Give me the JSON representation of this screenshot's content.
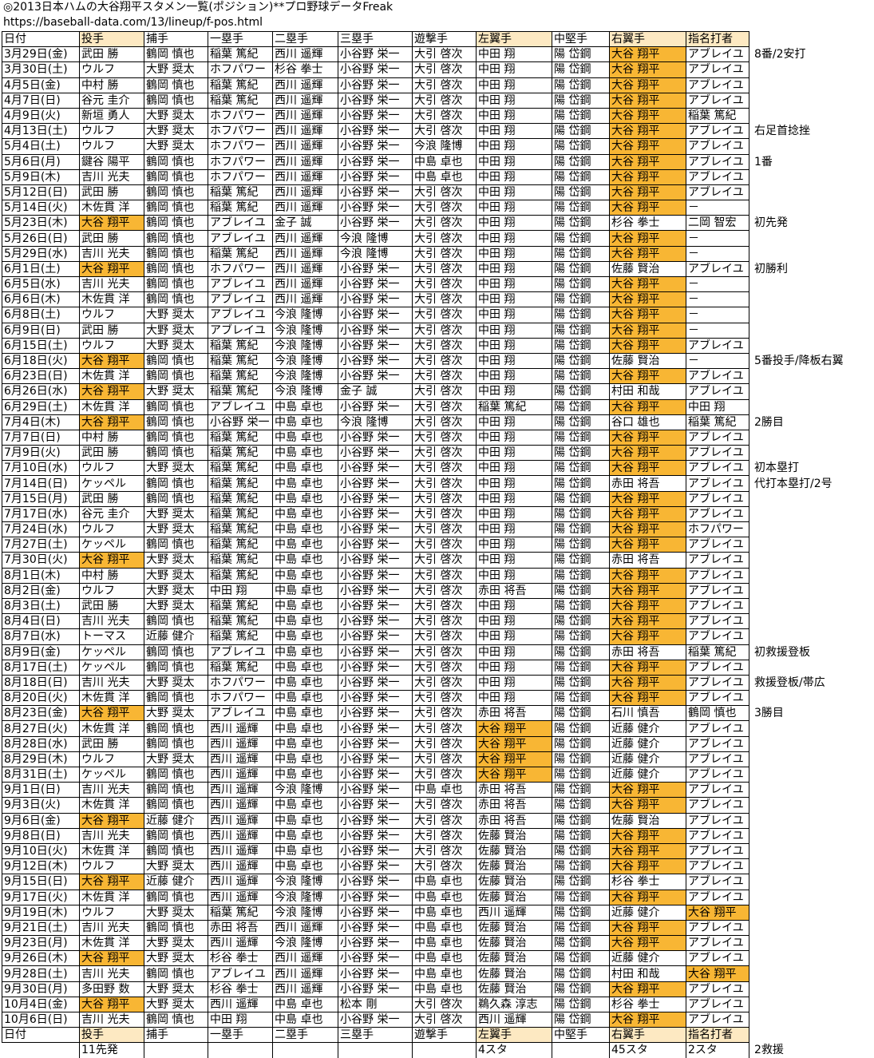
{
  "title": "◎2013日本ハムの大谷翔平スタメン一覧(ポジション)**プロ野球データFreak",
  "url": "https://baseball-data.com/13/lineup/f-pos.html",
  "colors": {
    "highlight": "#f8b634",
    "header_highlight": "#fde9c2"
  },
  "headers": [
    "日付",
    "投手",
    "捕手",
    "一塁手",
    "二塁手",
    "三塁手",
    "遊撃手",
    "左翼手",
    "中堅手",
    "右翼手",
    "指名打者"
  ],
  "rows": [
    {
      "c": [
        "3月29日(金)",
        "武田 勝",
        "鶴岡 慎也",
        "稲葉 篤紀",
        "西川 遥輝",
        "小谷野 栄一",
        "大引 啓次",
        "中田 翔",
        "陽 岱鋼",
        "大谷 翔平",
        "アブレイユ"
      ],
      "n": "8番/2安打"
    },
    {
      "c": [
        "3月30日(土)",
        "ウルフ",
        "大野 奨太",
        "ホフパワー",
        "杉谷 拳士",
        "小谷野 栄一",
        "大引 啓次",
        "中田 翔",
        "陽 岱鋼",
        "大谷 翔平",
        "アブレイユ"
      ],
      "n": ""
    },
    {
      "c": [
        "4月5日(金)",
        "中村 勝",
        "鶴岡 慎也",
        "稲葉 篤紀",
        "西川 遥輝",
        "小谷野 栄一",
        "大引 啓次",
        "中田 翔",
        "陽 岱鋼",
        "大谷 翔平",
        "アブレイユ"
      ],
      "n": ""
    },
    {
      "c": [
        "4月7日(日)",
        "谷元 圭介",
        "鶴岡 慎也",
        "稲葉 篤紀",
        "西川 遥輝",
        "小谷野 栄一",
        "大引 啓次",
        "中田 翔",
        "陽 岱鋼",
        "大谷 翔平",
        "アブレイユ"
      ],
      "n": ""
    },
    {
      "c": [
        "4月9日(火)",
        "新垣 勇人",
        "大野 奨太",
        "ホフパワー",
        "西川 遥輝",
        "小谷野 栄一",
        "大引 啓次",
        "中田 翔",
        "陽 岱鋼",
        "大谷 翔平",
        "稲葉 篤紀"
      ],
      "n": ""
    },
    {
      "c": [
        "4月13日(土)",
        "ウルフ",
        "大野 奨太",
        "ホフパワー",
        "西川 遥輝",
        "小谷野 栄一",
        "大引 啓次",
        "中田 翔",
        "陽 岱鋼",
        "大谷 翔平",
        "アブレイユ"
      ],
      "n": "右足首捻挫"
    },
    {
      "c": [
        "5月4日(土)",
        "ウルフ",
        "大野 奨太",
        "ホフパワー",
        "西川 遥輝",
        "小谷野 栄一",
        "今浪 隆博",
        "中田 翔",
        "陽 岱鋼",
        "大谷 翔平",
        "アブレイユ"
      ],
      "n": ""
    },
    {
      "c": [
        "5月6日(月)",
        "鍵谷 陽平",
        "鶴岡 慎也",
        "ホフパワー",
        "西川 遥輝",
        "小谷野 栄一",
        "中島 卓也",
        "中田 翔",
        "陽 岱鋼",
        "大谷 翔平",
        "アブレイユ"
      ],
      "n": "1番"
    },
    {
      "c": [
        "5月9日(木)",
        "吉川 光夫",
        "鶴岡 慎也",
        "ホフパワー",
        "西川 遥輝",
        "小谷野 栄一",
        "中島 卓也",
        "中田 翔",
        "陽 岱鋼",
        "大谷 翔平",
        "アブレイユ"
      ],
      "n": ""
    },
    {
      "c": [
        "5月12日(日)",
        "武田 勝",
        "鶴岡 慎也",
        "稲葉 篤紀",
        "西川 遥輝",
        "小谷野 栄一",
        "大引 啓次",
        "中田 翔",
        "陽 岱鋼",
        "大谷 翔平",
        "アブレイユ"
      ],
      "n": ""
    },
    {
      "c": [
        "5月14日(火)",
        "木佐貫 洋",
        "鶴岡 慎也",
        "稲葉 篤紀",
        "西川 遥輝",
        "小谷野 栄一",
        "大引 啓次",
        "中田 翔",
        "陽 岱鋼",
        "大谷 翔平",
        "－"
      ],
      "n": ""
    },
    {
      "c": [
        "5月23日(木)",
        "大谷 翔平",
        "鶴岡 慎也",
        "アブレイユ",
        "金子 誠",
        "小谷野 栄一",
        "大引 啓次",
        "中田 翔",
        "陽 岱鋼",
        "杉谷 拳士",
        "二岡 智宏"
      ],
      "n": "初先発"
    },
    {
      "c": [
        "5月26日(日)",
        "武田 勝",
        "鶴岡 慎也",
        "アブレイユ",
        "西川 遥輝",
        "今浪 隆博",
        "大引 啓次",
        "中田 翔",
        "陽 岱鋼",
        "大谷 翔平",
        "－"
      ],
      "n": ""
    },
    {
      "c": [
        "5月29日(水)",
        "吉川 光夫",
        "鶴岡 慎也",
        "稲葉 篤紀",
        "西川 遥輝",
        "今浪 隆博",
        "大引 啓次",
        "中田 翔",
        "陽 岱鋼",
        "大谷 翔平",
        "－"
      ],
      "n": ""
    },
    {
      "c": [
        "6月1日(土)",
        "大谷 翔平",
        "鶴岡 慎也",
        "ホフパワー",
        "西川 遥輝",
        "小谷野 栄一",
        "大引 啓次",
        "中田 翔",
        "陽 岱鋼",
        "佐藤 賢治",
        "アブレイユ"
      ],
      "n": "初勝利"
    },
    {
      "c": [
        "6月5日(水)",
        "吉川 光夫",
        "鶴岡 慎也",
        "アブレイユ",
        "西川 遥輝",
        "小谷野 栄一",
        "大引 啓次",
        "中田 翔",
        "陽 岱鋼",
        "大谷 翔平",
        "－"
      ],
      "n": ""
    },
    {
      "c": [
        "6月6日(木)",
        "木佐貫 洋",
        "鶴岡 慎也",
        "アブレイユ",
        "西川 遥輝",
        "小谷野 栄一",
        "大引 啓次",
        "中田 翔",
        "陽 岱鋼",
        "大谷 翔平",
        "－"
      ],
      "n": ""
    },
    {
      "c": [
        "6月8日(土)",
        "ウルフ",
        "大野 奨太",
        "アブレイユ",
        "今浪 隆博",
        "小谷野 栄一",
        "大引 啓次",
        "中田 翔",
        "陽 岱鋼",
        "大谷 翔平",
        "－"
      ],
      "n": ""
    },
    {
      "c": [
        "6月9日(日)",
        "武田 勝",
        "大野 奨太",
        "アブレイユ",
        "今浪 隆博",
        "小谷野 栄一",
        "大引 啓次",
        "中田 翔",
        "陽 岱鋼",
        "大谷 翔平",
        "－"
      ],
      "n": ""
    },
    {
      "c": [
        "6月15日(土)",
        "ウルフ",
        "大野 奨太",
        "稲葉 篤紀",
        "今浪 隆博",
        "小谷野 栄一",
        "大引 啓次",
        "中田 翔",
        "陽 岱鋼",
        "大谷 翔平",
        "アブレイユ"
      ],
      "n": ""
    },
    {
      "c": [
        "6月18日(火)",
        "大谷 翔平",
        "鶴岡 慎也",
        "稲葉 篤紀",
        "今浪 隆博",
        "小谷野 栄一",
        "大引 啓次",
        "中田 翔",
        "陽 岱鋼",
        "佐藤 賢治",
        "－"
      ],
      "n": "5番投手/降板右翼"
    },
    {
      "c": [
        "6月23日(日)",
        "木佐貫 洋",
        "鶴岡 慎也",
        "稲葉 篤紀",
        "今浪 隆博",
        "小谷野 栄一",
        "大引 啓次",
        "中田 翔",
        "陽 岱鋼",
        "大谷 翔平",
        "アブレイユ"
      ],
      "n": ""
    },
    {
      "c": [
        "6月26日(水)",
        "大谷 翔平",
        "大野 奨太",
        "稲葉 篤紀",
        "今浪 隆博",
        "金子 誠",
        "大引 啓次",
        "中田 翔",
        "陽 岱鋼",
        "村田 和哉",
        "アブレイユ"
      ],
      "n": ""
    },
    {
      "c": [
        "6月29日(土)",
        "木佐貫 洋",
        "鶴岡 慎也",
        "アブレイユ",
        "中島 卓也",
        "小谷野 栄一",
        "大引 啓次",
        "稲葉 篤紀",
        "陽 岱鋼",
        "大谷 翔平",
        "中田 翔"
      ],
      "n": ""
    },
    {
      "c": [
        "7月4日(木)",
        "大谷 翔平",
        "鶴岡 慎也",
        "小谷野 栄一",
        "中島 卓也",
        "今浪 隆博",
        "大引 啓次",
        "中田 翔",
        "陽 岱鋼",
        "谷口 雄也",
        "稲葉 篤紀"
      ],
      "n": "2勝目"
    },
    {
      "c": [
        "7月7日(日)",
        "中村 勝",
        "鶴岡 慎也",
        "稲葉 篤紀",
        "中島 卓也",
        "小谷野 栄一",
        "大引 啓次",
        "中田 翔",
        "陽 岱鋼",
        "大谷 翔平",
        "アブレイユ"
      ],
      "n": ""
    },
    {
      "c": [
        "7月9日(火)",
        "武田 勝",
        "鶴岡 慎也",
        "稲葉 篤紀",
        "中島 卓也",
        "小谷野 栄一",
        "大引 啓次",
        "中田 翔",
        "陽 岱鋼",
        "大谷 翔平",
        "アブレイユ"
      ],
      "n": ""
    },
    {
      "c": [
        "7月10日(水)",
        "ウルフ",
        "大野 奨太",
        "稲葉 篤紀",
        "中島 卓也",
        "小谷野 栄一",
        "大引 啓次",
        "中田 翔",
        "陽 岱鋼",
        "大谷 翔平",
        "アブレイユ"
      ],
      "n": "初本塁打"
    },
    {
      "c": [
        "7月14日(日)",
        "ケッペル",
        "鶴岡 慎也",
        "稲葉 篤紀",
        "中島 卓也",
        "小谷野 栄一",
        "大引 啓次",
        "中田 翔",
        "陽 岱鋼",
        "赤田 将吾",
        "アブレイユ"
      ],
      "n": "代打本塁打/2号"
    },
    {
      "c": [
        "7月15日(月)",
        "武田 勝",
        "鶴岡 慎也",
        "稲葉 篤紀",
        "中島 卓也",
        "小谷野 栄一",
        "大引 啓次",
        "中田 翔",
        "陽 岱鋼",
        "大谷 翔平",
        "アブレイユ"
      ],
      "n": ""
    },
    {
      "c": [
        "7月17日(水)",
        "谷元 圭介",
        "大野 奨太",
        "稲葉 篤紀",
        "中島 卓也",
        "小谷野 栄一",
        "大引 啓次",
        "中田 翔",
        "陽 岱鋼",
        "大谷 翔平",
        "アブレイユ"
      ],
      "n": ""
    },
    {
      "c": [
        "7月24日(水)",
        "ウルフ",
        "大野 奨太",
        "稲葉 篤紀",
        "中島 卓也",
        "小谷野 栄一",
        "大引 啓次",
        "中田 翔",
        "陽 岱鋼",
        "大谷 翔平",
        "ホフパワー"
      ],
      "n": ""
    },
    {
      "c": [
        "7月27日(土)",
        "ケッペル",
        "鶴岡 慎也",
        "稲葉 篤紀",
        "中島 卓也",
        "小谷野 栄一",
        "大引 啓次",
        "中田 翔",
        "陽 岱鋼",
        "大谷 翔平",
        "アブレイユ"
      ],
      "n": ""
    },
    {
      "c": [
        "7月30日(火)",
        "大谷 翔平",
        "大野 奨太",
        "稲葉 篤紀",
        "中島 卓也",
        "小谷野 栄一",
        "大引 啓次",
        "中田 翔",
        "陽 岱鋼",
        "赤田 将吾",
        "アブレイユ"
      ],
      "n": ""
    },
    {
      "c": [
        "8月1日(木)",
        "中村 勝",
        "大野 奨太",
        "稲葉 篤紀",
        "中島 卓也",
        "小谷野 栄一",
        "大引 啓次",
        "中田 翔",
        "陽 岱鋼",
        "大谷 翔平",
        "アブレイユ"
      ],
      "n": ""
    },
    {
      "c": [
        "8月2日(金)",
        "ウルフ",
        "大野 奨太",
        "中田 翔",
        "中島 卓也",
        "小谷野 栄一",
        "大引 啓次",
        "赤田 将吾",
        "陽 岱鋼",
        "大谷 翔平",
        "アブレイユ"
      ],
      "n": ""
    },
    {
      "c": [
        "8月3日(土)",
        "武田 勝",
        "大野 奨太",
        "稲葉 篤紀",
        "中島 卓也",
        "小谷野 栄一",
        "大引 啓次",
        "中田 翔",
        "陽 岱鋼",
        "大谷 翔平",
        "アブレイユ"
      ],
      "n": ""
    },
    {
      "c": [
        "8月4日(日)",
        "吉川 光夫",
        "鶴岡 慎也",
        "稲葉 篤紀",
        "中島 卓也",
        "小谷野 栄一",
        "大引 啓次",
        "中田 翔",
        "陽 岱鋼",
        "大谷 翔平",
        "アブレイユ"
      ],
      "n": ""
    },
    {
      "c": [
        "8月7日(水)",
        "トーマス",
        "近藤 健介",
        "稲葉 篤紀",
        "中島 卓也",
        "小谷野 栄一",
        "大引 啓次",
        "中田 翔",
        "陽 岱鋼",
        "大谷 翔平",
        "アブレイユ"
      ],
      "n": ""
    },
    {
      "c": [
        "8月9日(金)",
        "ケッペル",
        "鶴岡 慎也",
        "アブレイユ",
        "中島 卓也",
        "小谷野 栄一",
        "大引 啓次",
        "中田 翔",
        "陽 岱鋼",
        "赤田 将吾",
        "稲葉 篤紀"
      ],
      "n": "初救援登板"
    },
    {
      "c": [
        "8月17日(土)",
        "ケッペル",
        "鶴岡 慎也",
        "稲葉 篤紀",
        "中島 卓也",
        "小谷野 栄一",
        "大引 啓次",
        "中田 翔",
        "陽 岱鋼",
        "大谷 翔平",
        "アブレイユ"
      ],
      "n": ""
    },
    {
      "c": [
        "8月18日(日)",
        "吉川 光夫",
        "大野 奨太",
        "ホフパワー",
        "中島 卓也",
        "小谷野 栄一",
        "大引 啓次",
        "中田 翔",
        "陽 岱鋼",
        "大谷 翔平",
        "アブレイユ"
      ],
      "n": "救援登板/帯広"
    },
    {
      "c": [
        "8月20日(火)",
        "木佐貫 洋",
        "鶴岡 慎也",
        "ホフパワー",
        "中島 卓也",
        "小谷野 栄一",
        "大引 啓次",
        "中田 翔",
        "陽 岱鋼",
        "大谷 翔平",
        "アブレイユ"
      ],
      "n": ""
    },
    {
      "c": [
        "8月23日(金)",
        "大谷 翔平",
        "大野 奨太",
        "アブレイユ",
        "中島 卓也",
        "小谷野 栄一",
        "大引 啓次",
        "赤田 将吾",
        "陽 岱鋼",
        "石川 慎吾",
        "鶴岡 慎也"
      ],
      "n": "3勝目"
    },
    {
      "c": [
        "8月27日(火)",
        "木佐貫 洋",
        "鶴岡 慎也",
        "西川 遥輝",
        "中島 卓也",
        "小谷野 栄一",
        "大引 啓次",
        "大谷 翔平",
        "陽 岱鋼",
        "近藤 健介",
        "アブレイユ"
      ],
      "n": ""
    },
    {
      "c": [
        "8月28日(水)",
        "武田 勝",
        "鶴岡 慎也",
        "西川 遥輝",
        "中島 卓也",
        "小谷野 栄一",
        "大引 啓次",
        "大谷 翔平",
        "陽 岱鋼",
        "近藤 健介",
        "アブレイユ"
      ],
      "n": ""
    },
    {
      "c": [
        "8月29日(木)",
        "ウルフ",
        "大野 奨太",
        "西川 遥輝",
        "中島 卓也",
        "小谷野 栄一",
        "大引 啓次",
        "大谷 翔平",
        "陽 岱鋼",
        "近藤 健介",
        "アブレイユ"
      ],
      "n": ""
    },
    {
      "c": [
        "8月31日(土)",
        "ケッペル",
        "鶴岡 慎也",
        "西川 遥輝",
        "中島 卓也",
        "小谷野 栄一",
        "大引 啓次",
        "大谷 翔平",
        "陽 岱鋼",
        "近藤 健介",
        "アブレイユ"
      ],
      "n": ""
    },
    {
      "c": [
        "9月1日(日)",
        "吉川 光夫",
        "鶴岡 慎也",
        "西川 遥輝",
        "今浪 隆博",
        "小谷野 栄一",
        "中島 卓也",
        "赤田 将吾",
        "陽 岱鋼",
        "大谷 翔平",
        "アブレイユ"
      ],
      "n": ""
    },
    {
      "c": [
        "9月3日(火)",
        "木佐貫 洋",
        "鶴岡 慎也",
        "西川 遥輝",
        "中島 卓也",
        "小谷野 栄一",
        "大引 啓次",
        "赤田 将吾",
        "陽 岱鋼",
        "大谷 翔平",
        "アブレイユ"
      ],
      "n": ""
    },
    {
      "c": [
        "9月6日(金)",
        "大谷 翔平",
        "近藤 健介",
        "西川 遥輝",
        "中島 卓也",
        "小谷野 栄一",
        "大引 啓次",
        "赤田 将吾",
        "陽 岱鋼",
        "佐藤 賢治",
        "アブレイユ"
      ],
      "n": ""
    },
    {
      "c": [
        "9月8日(日)",
        "吉川 光夫",
        "鶴岡 慎也",
        "西川 遥輝",
        "中島 卓也",
        "小谷野 栄一",
        "大引 啓次",
        "佐藤 賢治",
        "陽 岱鋼",
        "大谷 翔平",
        "アブレイユ"
      ],
      "n": ""
    },
    {
      "c": [
        "9月10日(火)",
        "木佐貫 洋",
        "鶴岡 慎也",
        "西川 遥輝",
        "中島 卓也",
        "小谷野 栄一",
        "大引 啓次",
        "佐藤 賢治",
        "陽 岱鋼",
        "大谷 翔平",
        "アブレイユ"
      ],
      "n": ""
    },
    {
      "c": [
        "9月12日(木)",
        "ウルフ",
        "大野 奨太",
        "西川 遥輝",
        "中島 卓也",
        "小谷野 栄一",
        "大引 啓次",
        "佐藤 賢治",
        "陽 岱鋼",
        "大谷 翔平",
        "アブレイユ"
      ],
      "n": ""
    },
    {
      "c": [
        "9月15日(日)",
        "大谷 翔平",
        "近藤 健介",
        "西川 遥輝",
        "今浪 隆博",
        "小谷野 栄一",
        "中島 卓也",
        "佐藤 賢治",
        "陽 岱鋼",
        "杉谷 拳士",
        "アブレイユ"
      ],
      "n": ""
    },
    {
      "c": [
        "9月17日(火)",
        "木佐貫 洋",
        "鶴岡 慎也",
        "西川 遥輝",
        "今浪 隆博",
        "小谷野 栄一",
        "中島 卓也",
        "佐藤 賢治",
        "陽 岱鋼",
        "大谷 翔平",
        "アブレイユ"
      ],
      "n": ""
    },
    {
      "c": [
        "9月19日(木)",
        "ウルフ",
        "大野 奨太",
        "稲葉 篤紀",
        "今浪 隆博",
        "小谷野 栄一",
        "中島 卓也",
        "西川 遥輝",
        "陽 岱鋼",
        "近藤 健介",
        "大谷 翔平"
      ],
      "n": ""
    },
    {
      "c": [
        "9月21日(土)",
        "吉川 光夫",
        "鶴岡 慎也",
        "赤田 将吾",
        "西川 遥輝",
        "小谷野 栄一",
        "中島 卓也",
        "佐藤 賢治",
        "陽 岱鋼",
        "大谷 翔平",
        "アブレイユ"
      ],
      "n": ""
    },
    {
      "c": [
        "9月23日(月)",
        "木佐貫 洋",
        "大野 奨太",
        "西川 遥輝",
        "今浪 隆博",
        "小谷野 栄一",
        "中島 卓也",
        "佐藤 賢治",
        "陽 岱鋼",
        "大谷 翔平",
        "アブレイユ"
      ],
      "n": ""
    },
    {
      "c": [
        "9月26日(木)",
        "大谷 翔平",
        "大野 奨太",
        "杉谷 拳士",
        "西川 遥輝",
        "小谷野 栄一",
        "中島 卓也",
        "佐藤 賢治",
        "陽 岱鋼",
        "近藤 健介",
        "アブレイユ"
      ],
      "n": ""
    },
    {
      "c": [
        "9月28日(土)",
        "吉川 光夫",
        "鶴岡 慎也",
        "アブレイユ",
        "西川 遥輝",
        "小谷野 栄一",
        "中島 卓也",
        "佐藤 賢治",
        "陽 岱鋼",
        "村田 和哉",
        "大谷 翔平"
      ],
      "n": ""
    },
    {
      "c": [
        "9月30日(月)",
        "多田野 数",
        "大野 奨太",
        "杉谷 拳士",
        "西川 遥輝",
        "小谷野 栄一",
        "中島 卓也",
        "佐藤 賢治",
        "陽 岱鋼",
        "大谷 翔平",
        "アブレイユ"
      ],
      "n": ""
    },
    {
      "c": [
        "10月4日(金)",
        "大谷 翔平",
        "大野 奨太",
        "西川 遥輝",
        "中島 卓也",
        "松本 剛",
        "大引 啓次",
        "鵜久森 淳志",
        "陽 岱鋼",
        "杉谷 拳士",
        "アブレイユ"
      ],
      "n": ""
    },
    {
      "c": [
        "10月6日(日)",
        "吉川 光夫",
        "鶴岡 慎也",
        "中田 翔",
        "中島 卓也",
        "小谷野 栄一",
        "大引 啓次",
        "西川 遥輝",
        "陽 岱鋼",
        "大谷 翔平",
        "アブレイユ"
      ],
      "n": ""
    }
  ],
  "footer": [
    "",
    "11先発",
    "",
    "",
    "",
    "",
    "",
    "4スタ",
    "",
    "45スタ",
    "2スタ",
    "2救援"
  ]
}
